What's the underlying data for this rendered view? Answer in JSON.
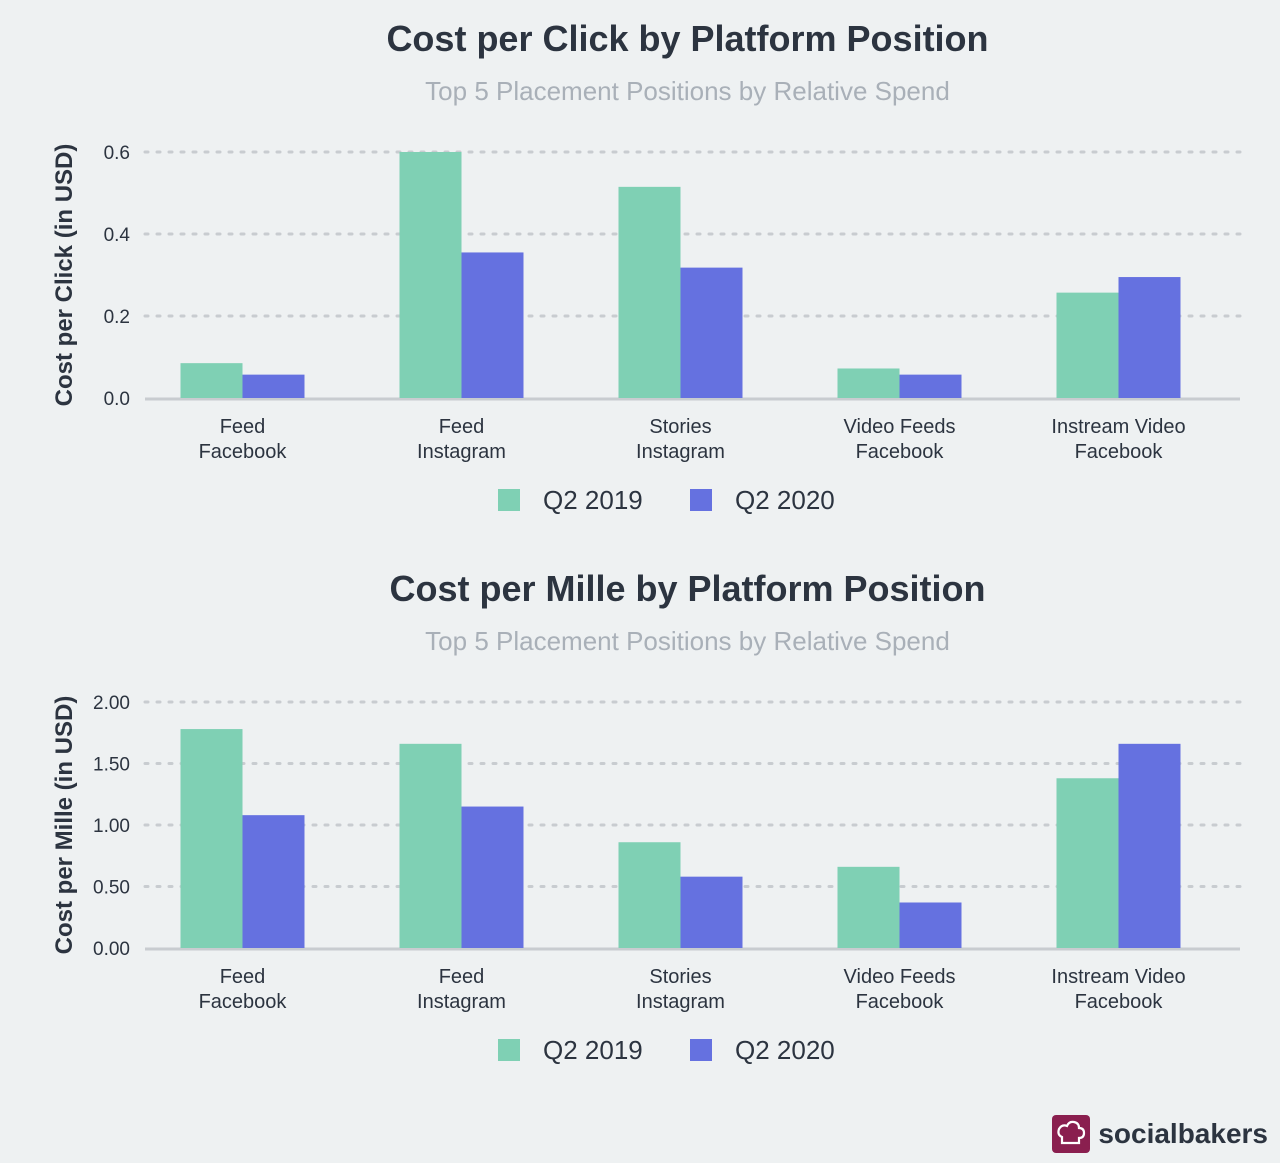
{
  "brand": {
    "name": "socialbakers"
  },
  "colors": {
    "q2_2019": "#7fd0b4",
    "q2_2020": "#6571e0",
    "axis": "#c8ccd0",
    "grid": "#c8ccd0",
    "text": "#2c3440",
    "muted": "#a9b0b8"
  },
  "chart_data": [
    {
      "type": "bar",
      "title": "Cost per Click by Platform Position",
      "subtitle": "Top 5 Placement Positions by Relative Spend",
      "ylabel": "Cost per Click (in USD)",
      "xlabel": "",
      "categories": [
        [
          "Feed",
          "Facebook"
        ],
        [
          "Feed",
          "Instagram"
        ],
        [
          "Stories",
          "Instagram"
        ],
        [
          "Video Feeds",
          "Facebook"
        ],
        [
          "Instream Video",
          "Facebook"
        ]
      ],
      "yticks": [
        "0.0",
        "0.2",
        "0.4",
        "0.6"
      ],
      "ylim": [
        0,
        0.6
      ],
      "grid": true,
      "legend_position": "bottom-center",
      "series": [
        {
          "name": "Q2 2019",
          "values": [
            0.085,
            0.6,
            0.515,
            0.072,
            0.257
          ]
        },
        {
          "name": "Q2 2020",
          "values": [
            0.057,
            0.355,
            0.318,
            0.057,
            0.295
          ]
        }
      ]
    },
    {
      "type": "bar",
      "title": "Cost per Mille by Platform Position",
      "subtitle": "Top 5 Placement Positions by Relative Spend",
      "ylabel": "Cost per Mille (in USD)",
      "xlabel": "",
      "categories": [
        [
          "Feed",
          "Facebook"
        ],
        [
          "Feed",
          "Instagram"
        ],
        [
          "Stories",
          "Instagram"
        ],
        [
          "Video Feeds",
          "Facebook"
        ],
        [
          "Instream Video",
          "Facebook"
        ]
      ],
      "yticks": [
        "0.00",
        "0.50",
        "1.00",
        "1.50",
        "2.00"
      ],
      "ylim": [
        0,
        2.0
      ],
      "grid": true,
      "legend_position": "bottom-center",
      "series": [
        {
          "name": "Q2 2019",
          "values": [
            1.78,
            1.66,
            0.86,
            0.66,
            1.38
          ]
        },
        {
          "name": "Q2 2020",
          "values": [
            1.08,
            1.15,
            0.58,
            0.37,
            1.66
          ]
        }
      ]
    }
  ]
}
